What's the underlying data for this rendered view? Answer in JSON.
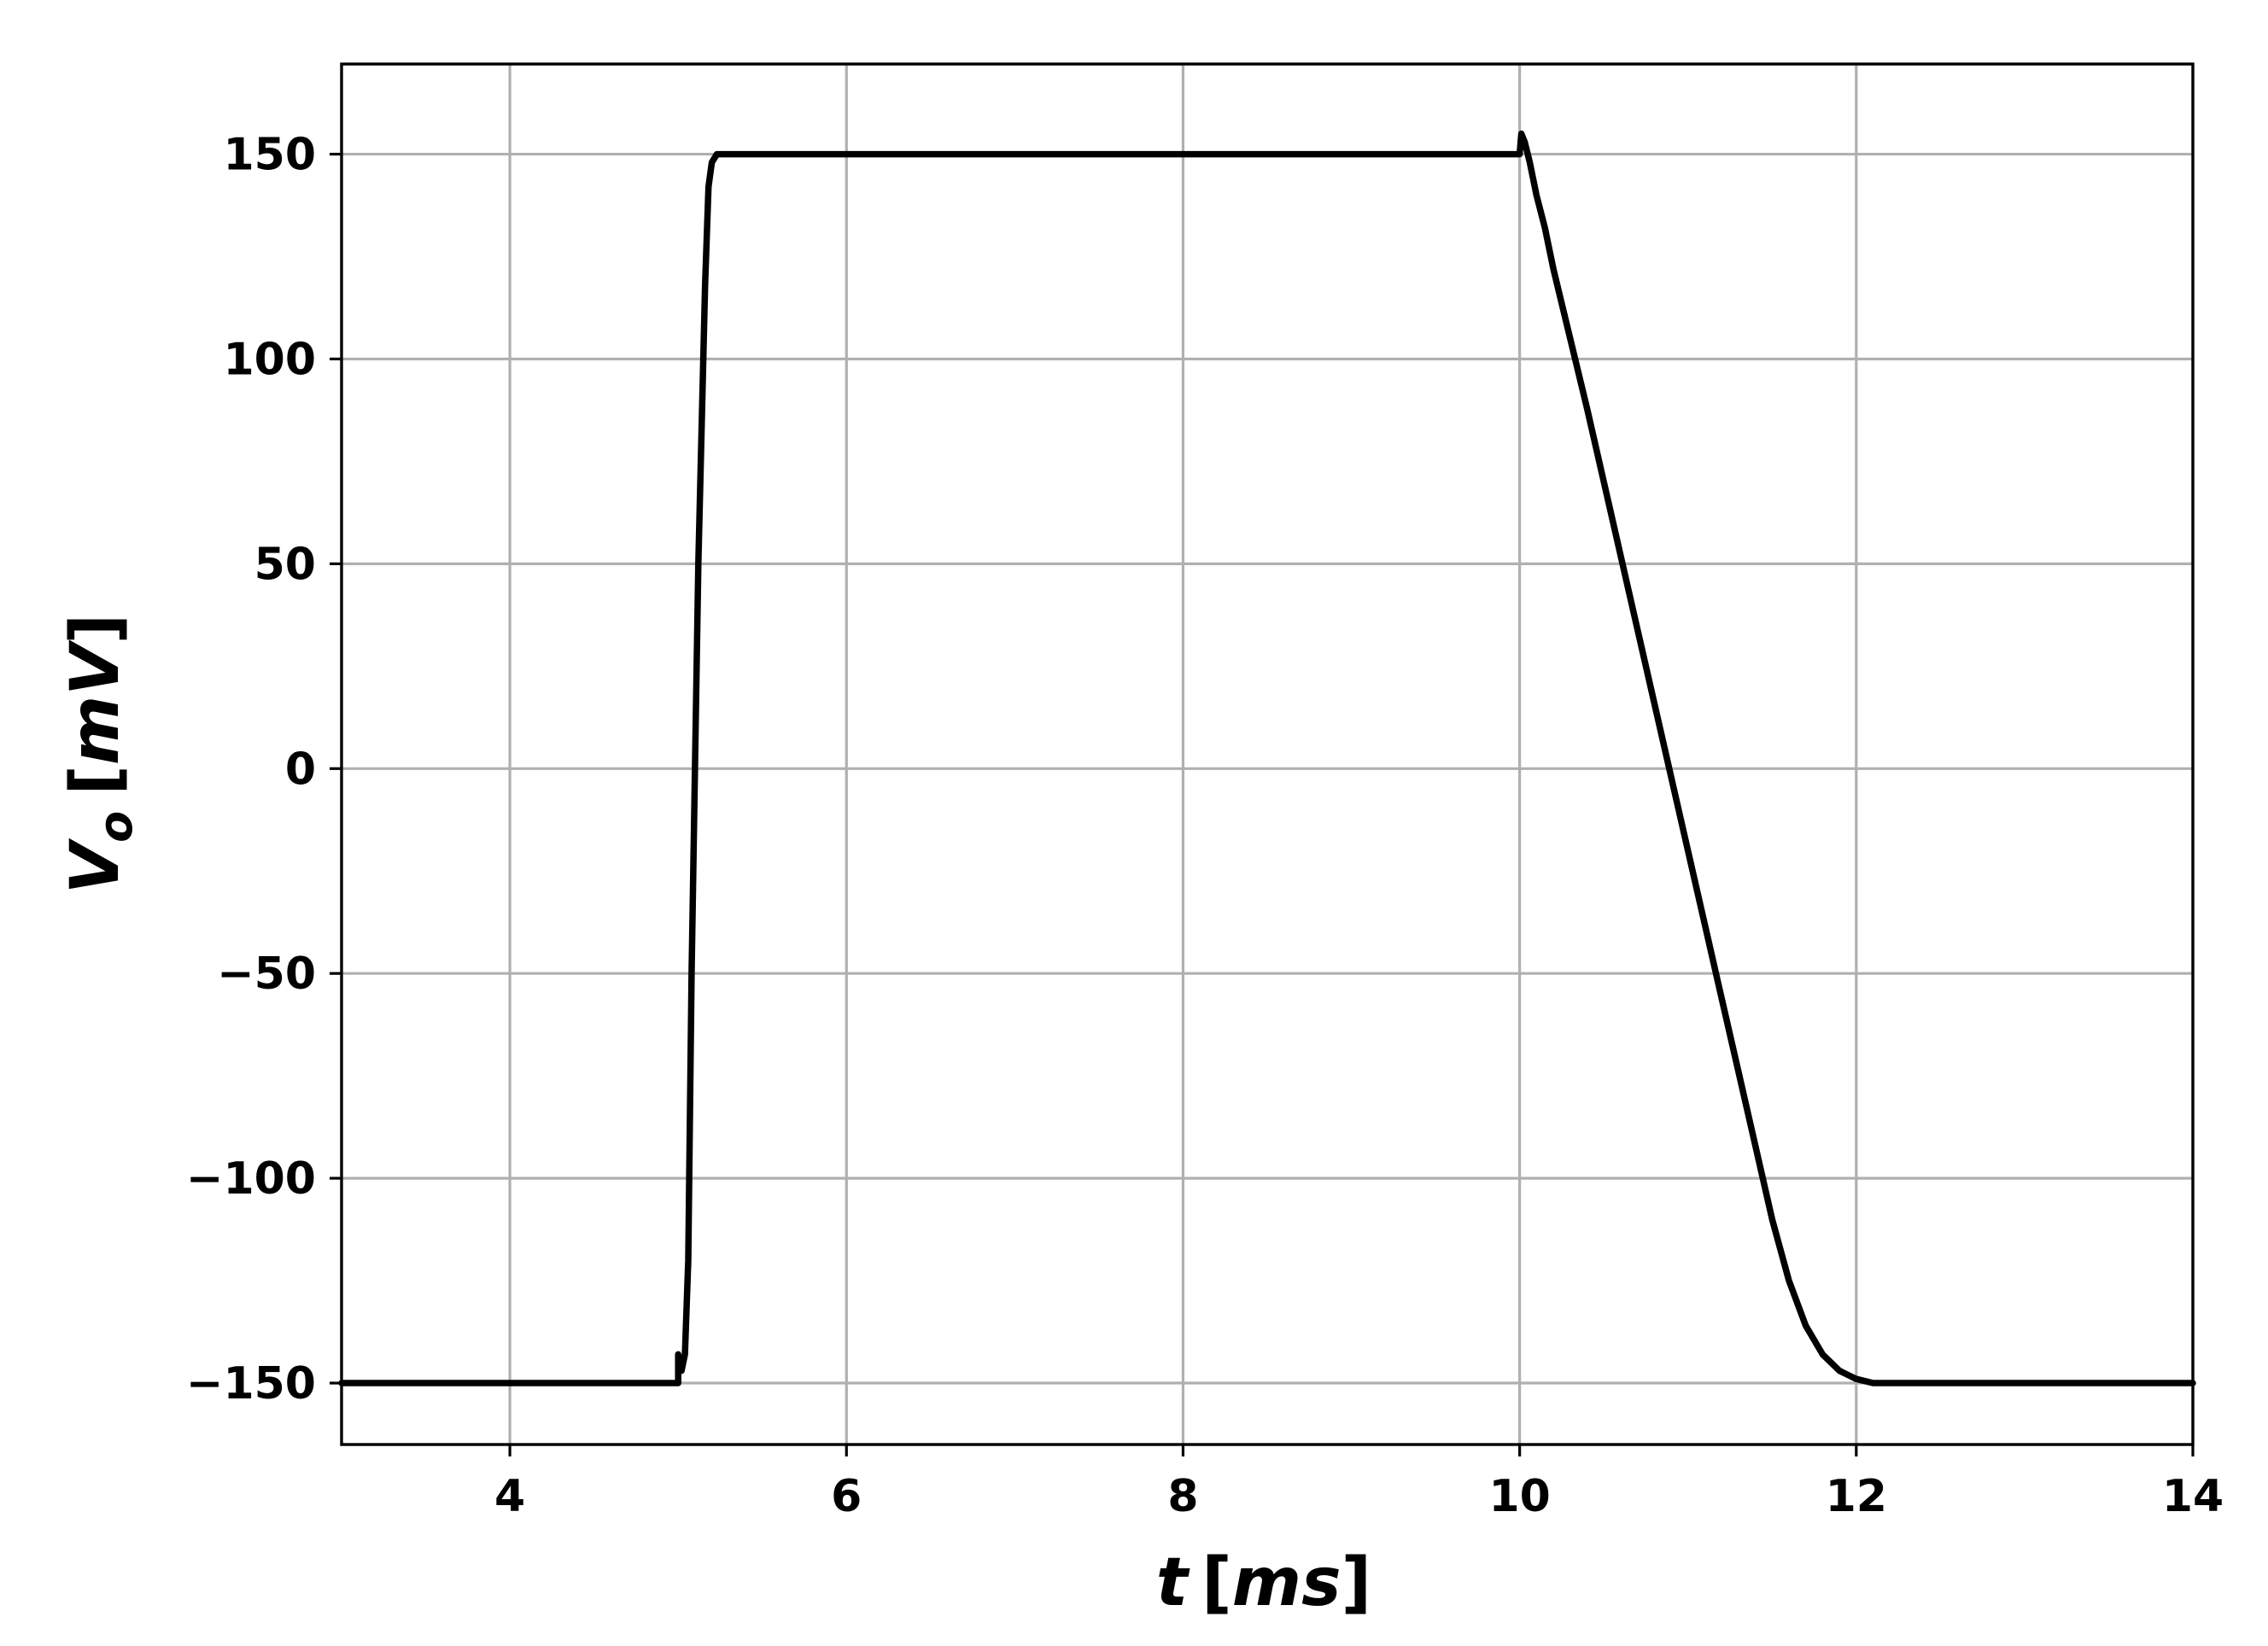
{
  "chart_data": {
    "type": "line",
    "title": "",
    "xlabel": "t [ms]",
    "ylabel": "V_o [mV]",
    "xlabel_parts": {
      "var": "t",
      "unit": "ms"
    },
    "ylabel_parts": {
      "var": "V",
      "sub": "o",
      "unit": "mV"
    },
    "xlim": [
      3,
      14
    ],
    "ylim": [
      -165,
      172
    ],
    "x_ticks": [
      4,
      6,
      8,
      10,
      12,
      14
    ],
    "x_tick_labels": [
      "4",
      "6",
      "8",
      "10",
      "12",
      "14"
    ],
    "y_ticks": [
      150,
      100,
      50,
      0,
      -50,
      -100,
      -150
    ],
    "y_tick_labels": [
      "150",
      "100",
      "50",
      "0",
      "−50",
      "−100",
      "−150"
    ],
    "grid": true,
    "line_color": "#000000",
    "grid_color": "#b0b0b0",
    "series": [
      {
        "x": [
          3.0,
          5.0,
          5.0,
          5.02,
          5.04,
          5.06,
          5.08,
          5.12,
          5.16,
          5.18,
          5.2,
          5.23,
          6.0,
          8.0,
          10.0,
          10.01,
          10.03,
          10.06,
          10.1,
          10.15,
          10.2,
          10.3,
          10.4,
          10.5,
          10.6,
          10.7,
          10.8,
          10.9,
          11.0,
          11.1,
          11.2,
          11.3,
          11.4,
          11.5,
          11.6,
          11.7,
          11.8,
          11.9,
          12.0,
          12.1,
          12.2,
          12.3,
          12.4,
          12.5,
          12.6,
          12.7,
          12.8,
          13.0,
          14.0
        ],
        "y": [
          -150,
          -150,
          -143,
          -147,
          -143,
          -120,
          -50,
          50,
          118,
          142,
          148,
          150,
          150,
          150,
          150,
          155,
          153,
          148,
          140,
          132,
          122,
          105,
          88,
          70,
          52,
          34,
          16,
          -2,
          -20,
          -38,
          -56,
          -74,
          -92,
          -110,
          -125,
          -136,
          -143,
          -147,
          -149,
          -150,
          -150,
          -150,
          -150,
          -150,
          -150,
          -150,
          -150,
          -150,
          -150
        ]
      }
    ]
  }
}
